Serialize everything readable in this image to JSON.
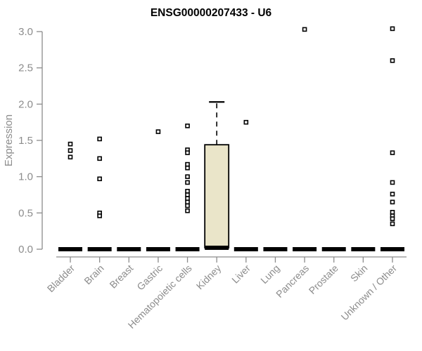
{
  "chart_data": {
    "type": "boxplot",
    "title": "ENSG00000207433 - U6",
    "ylabel": "Expression",
    "xlabel": "",
    "ylim": [
      0,
      3.0
    ],
    "yticks": [
      "0.0",
      "0.5",
      "1.0",
      "1.5",
      "2.0",
      "2.5",
      "3.0"
    ],
    "grid": false,
    "legend": false,
    "categories": [
      "Bladder",
      "Brain",
      "Breast",
      "Gastric",
      "Hematopoietic cells",
      "Kidney",
      "Liver",
      "Lung",
      "Pancreas",
      "Prostate",
      "Skin",
      "Unknown / Other"
    ],
    "boxes": [
      {
        "category": "Bladder",
        "median": 0,
        "q1": 0,
        "q3": 0,
        "whisker_low": 0,
        "whisker_high": 0,
        "outliers": [
          1.45,
          1.36,
          1.27
        ]
      },
      {
        "category": "Brain",
        "median": 0,
        "q1": 0,
        "q3": 0,
        "whisker_low": 0,
        "whisker_high": 0,
        "outliers": [
          1.52,
          1.25,
          0.97,
          0.5,
          0.46
        ]
      },
      {
        "category": "Breast",
        "median": 0,
        "q1": 0,
        "q3": 0,
        "whisker_low": 0,
        "whisker_high": 0,
        "outliers": []
      },
      {
        "category": "Gastric",
        "median": 0,
        "q1": 0,
        "q3": 0,
        "whisker_low": 0,
        "whisker_high": 0,
        "outliers": [
          1.62
        ]
      },
      {
        "category": "Hematopoietic cells",
        "median": 0,
        "q1": 0,
        "q3": 0,
        "whisker_low": 0,
        "whisker_high": 0,
        "outliers": [
          1.7,
          1.37,
          1.33,
          1.17,
          1.12,
          1.0,
          0.92,
          0.8,
          0.75,
          0.7,
          0.65,
          0.6,
          0.53
        ]
      },
      {
        "category": "Kidney",
        "median": 0.02,
        "q1": 0.02,
        "q3": 1.44,
        "whisker_low": 0.02,
        "whisker_high": 2.03,
        "outliers": []
      },
      {
        "category": "Liver",
        "median": 0,
        "q1": 0,
        "q3": 0,
        "whisker_low": 0,
        "whisker_high": 0,
        "outliers": [
          1.75
        ]
      },
      {
        "category": "Lung",
        "median": 0,
        "q1": 0,
        "q3": 0,
        "whisker_low": 0,
        "whisker_high": 0,
        "outliers": []
      },
      {
        "category": "Pancreas",
        "median": 0,
        "q1": 0,
        "q3": 0,
        "whisker_low": 0,
        "whisker_high": 0,
        "outliers": [
          3.03
        ]
      },
      {
        "category": "Prostate",
        "median": 0,
        "q1": 0,
        "q3": 0,
        "whisker_low": 0,
        "whisker_high": 0,
        "outliers": []
      },
      {
        "category": "Skin",
        "median": 0,
        "q1": 0,
        "q3": 0,
        "whisker_low": 0,
        "whisker_high": 0,
        "outliers": []
      },
      {
        "category": "Unknown / Other",
        "median": 0,
        "q1": 0,
        "q3": 0,
        "whisker_low": 0,
        "whisker_high": 0,
        "outliers": [
          3.04,
          2.6,
          1.33,
          0.92,
          0.76,
          0.65,
          0.51,
          0.46,
          0.42,
          0.35
        ]
      }
    ],
    "colors": {
      "box_fill": "#EAE5C9",
      "box_border": "#000000",
      "points": "#000000",
      "axis": "#8c8c8c",
      "title": "#000000",
      "background": "#ffffff"
    }
  }
}
